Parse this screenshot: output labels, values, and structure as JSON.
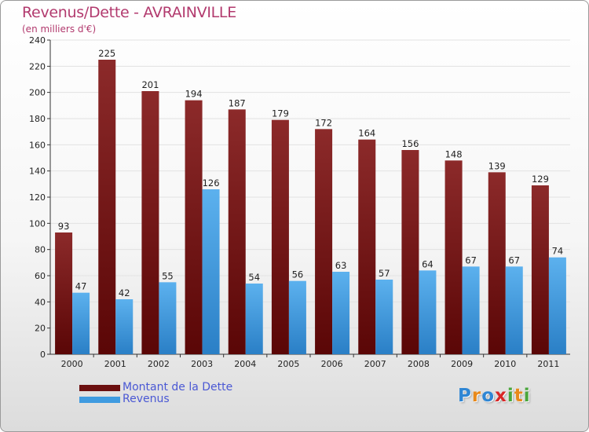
{
  "header": {
    "title": "Revenus/Dette - AVRAINVILLE",
    "subtitle": "(en milliers d'€)"
  },
  "colors": {
    "title": "#b23a6e",
    "dette": "#7a1c1c",
    "revenus": "#3f9be0",
    "legend_text": "#4a58d4"
  },
  "legend": {
    "items": [
      {
        "label": "Montant de la Dette",
        "color": "#6b0f0f"
      },
      {
        "label": "Revenus",
        "color": "#3f9be0"
      }
    ]
  },
  "logo": {
    "letters": [
      {
        "char": "P",
        "color": "#2f86d4"
      },
      {
        "char": "r",
        "color": "#e8891a"
      },
      {
        "char": "o",
        "color": "#2f86d4"
      },
      {
        "char": "x",
        "color": "#d92727"
      },
      {
        "char": "i",
        "color": "#4aa63c"
      },
      {
        "char": "t",
        "color": "#e8891a"
      },
      {
        "char": "i",
        "color": "#4aa63c"
      }
    ]
  },
  "chart_data": {
    "type": "bar",
    "title": "Revenus/Dette - AVRAINVILLE",
    "subtitle": "(en milliers d'€)",
    "categories": [
      "2000",
      "2001",
      "2002",
      "2003",
      "2004",
      "2005",
      "2006",
      "2007",
      "2008",
      "2009",
      "2010",
      "2011"
    ],
    "series": [
      {
        "name": "Montant de la Dette",
        "values": [
          93,
          225,
          201,
          194,
          187,
          179,
          172,
          164,
          156,
          148,
          139,
          129
        ]
      },
      {
        "name": "Revenus",
        "values": [
          47,
          42,
          55,
          126,
          54,
          56,
          63,
          57,
          64,
          67,
          67,
          74
        ]
      }
    ],
    "ylim": [
      0,
      240
    ],
    "yticks": [
      0,
      20,
      40,
      60,
      80,
      100,
      120,
      140,
      160,
      180,
      200,
      220,
      240
    ],
    "grid": true,
    "legend_position": "bottom-left"
  }
}
